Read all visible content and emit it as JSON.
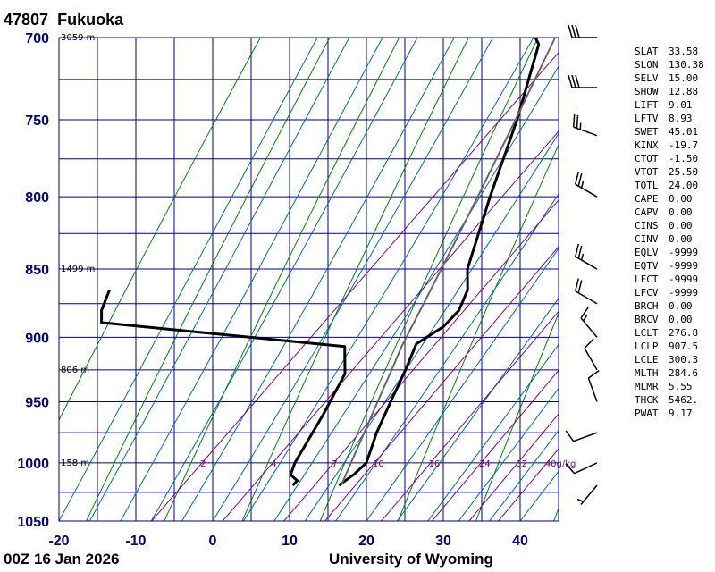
{
  "header": {
    "station_id": "47807",
    "station_name": "Fukuoka"
  },
  "footer": {
    "time": "00Z 16 Jan 2026",
    "source": "University of Wyoming"
  },
  "chart_data": {
    "type": "skew-t",
    "y_axis": {
      "quantity": "pressure",
      "log_scale": true,
      "range": [
        1050,
        700
      ],
      "ticks": [
        "700",
        "750",
        "800",
        "850",
        "900",
        "950",
        "1000",
        "1050"
      ],
      "tick_values": [
        700,
        750,
        800,
        850,
        900,
        950,
        1000,
        1050
      ]
    },
    "x_axis": {
      "quantity": "temperature",
      "range": [
        -20,
        45
      ],
      "ticks": [
        "-20",
        "-10",
        "0",
        "10",
        "20",
        "30",
        "40"
      ],
      "tick_values": [
        -20,
        -10,
        0,
        10,
        20,
        30,
        40
      ]
    },
    "grid": true,
    "height_labels": [
      {
        "p": 700,
        "text": "3059 m"
      },
      {
        "p": 850,
        "text": "1499 m"
      },
      {
        "p": 925,
        "text": "806 m"
      },
      {
        "p": 1000,
        "text": "158 m"
      }
    ],
    "mixing_ratio_labels": [
      "2",
      "4",
      "7",
      "10",
      "16",
      "24",
      "32",
      "40g/kg"
    ],
    "mixing_ratio_values": [
      2,
      4,
      7,
      10,
      16,
      24,
      32,
      40
    ],
    "series": [
      {
        "role": "temperature",
        "color": "#000000",
        "points": [
          {
            "p": 1019,
            "t": 12.0
          },
          {
            "p": 1010,
            "t": 12.6
          },
          {
            "p": 1000,
            "t": 12.8
          },
          {
            "p": 975,
            "t": 10.4
          },
          {
            "p": 950,
            "t": 8.4
          },
          {
            "p": 925,
            "t": 6.4
          },
          {
            "p": 905,
            "t": 4.6
          },
          {
            "p": 892,
            "t": 6.0
          },
          {
            "p": 880,
            "t": 6.0
          },
          {
            "p": 865,
            "t": 4.6
          },
          {
            "p": 850,
            "t": 2.0
          },
          {
            "p": 800,
            "t": -4.0
          },
          {
            "p": 750,
            "t": -10.0
          },
          {
            "p": 704,
            "t": -16.5
          },
          {
            "p": 700,
            "t": -17.8
          }
        ]
      },
      {
        "role": "dewpoint",
        "color": "#000000",
        "points": [
          {
            "p": 1019,
            "t": 6.0
          },
          {
            "p": 1015,
            "t": 6.0
          },
          {
            "p": 1010,
            "t": 4.4
          },
          {
            "p": 1000,
            "t": 3.5
          },
          {
            "p": 960,
            "t": 1.2
          },
          {
            "p": 928,
            "t": -1.0
          },
          {
            "p": 907,
            "t": -4.4
          },
          {
            "p": 889,
            "t": -39.0
          },
          {
            "p": 880,
            "t": -40.5
          },
          {
            "p": 865,
            "t": -42.0
          }
        ]
      },
      {
        "role": "parcel",
        "color": "#666666",
        "points": [
          {
            "p": 1019,
            "t": 12.3
          },
          {
            "p": 1000,
            "t": 10.8
          },
          {
            "p": 975,
            "t": 8.8
          },
          {
            "p": 950,
            "t": 6.7
          },
          {
            "p": 925,
            "t": 4.6
          },
          {
            "p": 907,
            "t": 3.0
          },
          {
            "p": 850,
            "t": -1.4
          },
          {
            "p": 800,
            "t": -5.6
          },
          {
            "p": 750,
            "t": -10.2
          },
          {
            "p": 700,
            "t": -15.2
          }
        ]
      }
    ],
    "background_lines": {
      "isotherm_color": "#000080",
      "dry_adiabat_color": "#008000",
      "moist_adiabat_color": "#0066aa",
      "mixing_ratio_color": "#800080"
    },
    "wind_barbs": [
      {
        "p": 1019,
        "dir": 220,
        "spd": 5
      },
      {
        "p": 1000,
        "dir": 245,
        "spd": 10
      },
      {
        "p": 975,
        "dir": 250,
        "spd": 10
      },
      {
        "p": 950,
        "dir": 340,
        "spd": 10
      },
      {
        "p": 925,
        "dir": 330,
        "spd": 10
      },
      {
        "p": 900,
        "dir": 320,
        "spd": 15
      },
      {
        "p": 875,
        "dir": 300,
        "spd": 20
      },
      {
        "p": 850,
        "dir": 300,
        "spd": 25
      },
      {
        "p": 800,
        "dir": 300,
        "spd": 25
      },
      {
        "p": 760,
        "dir": 290,
        "spd": 25
      },
      {
        "p": 730,
        "dir": 270,
        "spd": 30
      },
      {
        "p": 700,
        "dir": 270,
        "spd": 30
      }
    ]
  },
  "indices": [
    {
      "key": "SLAT",
      "value": "33.58"
    },
    {
      "key": "SLON",
      "value": "130.38"
    },
    {
      "key": "SELV",
      "value": "15.00"
    },
    {
      "key": "SHOW",
      "value": "12.88"
    },
    {
      "key": "LIFT",
      "value": "9.01"
    },
    {
      "key": "LFTV",
      "value": "8.93"
    },
    {
      "key": "SWET",
      "value": "45.01"
    },
    {
      "key": "KINX",
      "value": "-19.7"
    },
    {
      "key": "CTOT",
      "value": "-1.50"
    },
    {
      "key": "VTOT",
      "value": "25.50"
    },
    {
      "key": "TOTL",
      "value": "24.00"
    },
    {
      "key": "CAPE",
      "value": "0.00"
    },
    {
      "key": "CAPV",
      "value": "0.00"
    },
    {
      "key": "CINS",
      "value": "0.00"
    },
    {
      "key": "CINV",
      "value": "0.00"
    },
    {
      "key": "EQLV",
      "value": "-9999"
    },
    {
      "key": "EQTV",
      "value": "-9999"
    },
    {
      "key": "LFCT",
      "value": "-9999"
    },
    {
      "key": "LFCV",
      "value": "-9999"
    },
    {
      "key": "BRCH",
      "value": "0.00"
    },
    {
      "key": "BRCV",
      "value": "0.00"
    },
    {
      "key": "LCLT",
      "value": "276.8"
    },
    {
      "key": "LCLP",
      "value": "907.5"
    },
    {
      "key": "LCLE",
      "value": "300.3"
    },
    {
      "key": "MLTH",
      "value": "284.6"
    },
    {
      "key": "MLMR",
      "value": "5.55"
    },
    {
      "key": "THCK",
      "value": "5462."
    },
    {
      "key": "PWAT",
      "value": "9.17"
    }
  ]
}
